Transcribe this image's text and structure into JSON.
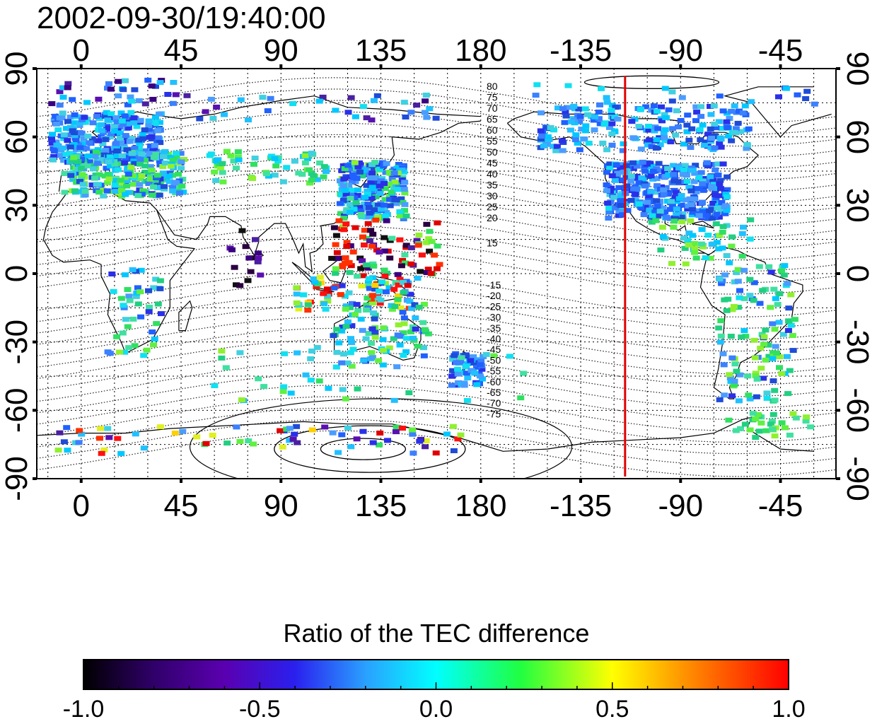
{
  "title": "2002-09-30/19:40:00",
  "map": {
    "lon_tick_labels": [
      "0",
      "45",
      "90",
      "135",
      "180",
      "-135",
      "-90",
      "-45"
    ],
    "lat_tick_labels": [
      "90",
      "60",
      "30",
      "0",
      "-30",
      "-60",
      "-90"
    ],
    "lon_range": [
      -20,
      340
    ],
    "lat_range": [
      -90,
      90
    ],
    "grid": true,
    "dip_contour_labels_north": [
      "80",
      "75",
      "70",
      "65",
      "60",
      "55",
      "50",
      "45",
      "40",
      "35",
      "30",
      "25",
      "20",
      "15"
    ],
    "dip_contour_labels_south": [
      "-15",
      "-20",
      "-25",
      "-30",
      "-35",
      "-40",
      "-45",
      "-50",
      "-55",
      "-60",
      "-65",
      "-70",
      "-75"
    ],
    "marker_line": {
      "longitude": -115,
      "color": "#e00000"
    }
  },
  "colorbar": {
    "title": "Ratio of the TEC difference",
    "tick_labels": [
      "-1.0",
      "-0.5",
      "0.0",
      "0.5",
      "1.0"
    ],
    "range": [
      -1.0,
      1.0
    ]
  }
}
